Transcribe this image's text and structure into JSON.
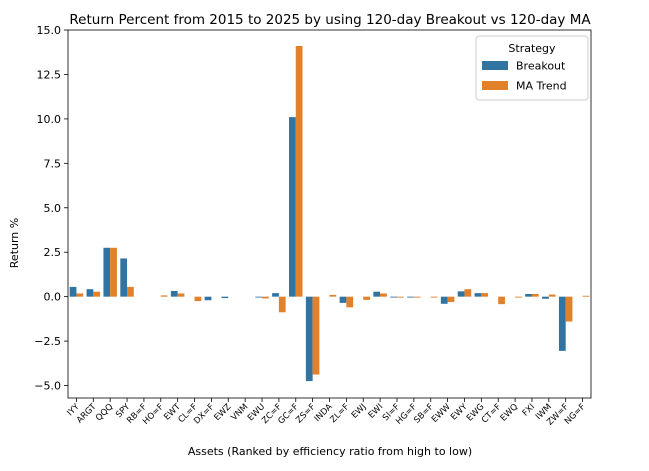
{
  "chart_data": {
    "type": "bar",
    "title": "Return Percent from 2015 to 2025 by using 120-day Breakout vs 120-day MA",
    "xlabel": "Assets (Ranked by efficiency ratio from high to low)",
    "ylabel": "Return %",
    "ylim": [
      -5.7,
      15.0
    ],
    "yticks": [
      -5.0,
      -2.5,
      0.0,
      2.5,
      5.0,
      7.5,
      10.0,
      12.5,
      15.0
    ],
    "ytick_labels": [
      "−5.0",
      "−2.5",
      "0.0",
      "2.5",
      "5.0",
      "7.5",
      "10.0",
      "12.5",
      "15.0"
    ],
    "grid": false,
    "legend": {
      "title": "Strategy",
      "placement": "top-right"
    },
    "categories": [
      "IYY",
      "ARGT",
      "QQQ",
      "SPY",
      "RB=F",
      "HO=F",
      "EWT",
      "CL=F",
      "DX=F",
      "EWZ",
      "VNM",
      "EWU",
      "ZC=F",
      "GC=F",
      "ZS=F",
      "INDA",
      "ZL=F",
      "EWJ",
      "EWI",
      "SI=F",
      "HG=F",
      "SB=F",
      "EWW",
      "EWY",
      "EWG",
      "CT=F",
      "EWQ",
      "FXI",
      "IWM",
      "ZW=F",
      "NG=F"
    ],
    "series": [
      {
        "name": "Breakout",
        "color": "#3274a1",
        "values": [
          0.55,
          0.42,
          2.75,
          2.15,
          0,
          0,
          0.32,
          0,
          -0.2,
          -0.08,
          0,
          -0.05,
          0.2,
          10.1,
          -4.75,
          0,
          -0.35,
          0,
          0.28,
          -0.05,
          -0.05,
          0,
          -0.4,
          0.3,
          0.2,
          0,
          0,
          0.15,
          -0.12,
          -3.05,
          0
        ]
      },
      {
        "name": "MA Trend",
        "color": "#e1812c",
        "values": [
          0.18,
          0.28,
          2.75,
          0.55,
          0,
          0.07,
          0.18,
          -0.25,
          0,
          0,
          0,
          -0.1,
          -0.88,
          14.1,
          -4.38,
          0.1,
          -0.6,
          -0.18,
          0.18,
          -0.05,
          -0.05,
          -0.05,
          -0.3,
          0.42,
          0.2,
          -0.42,
          -0.05,
          0.15,
          0.12,
          -1.4,
          0.05
        ]
      }
    ]
  }
}
